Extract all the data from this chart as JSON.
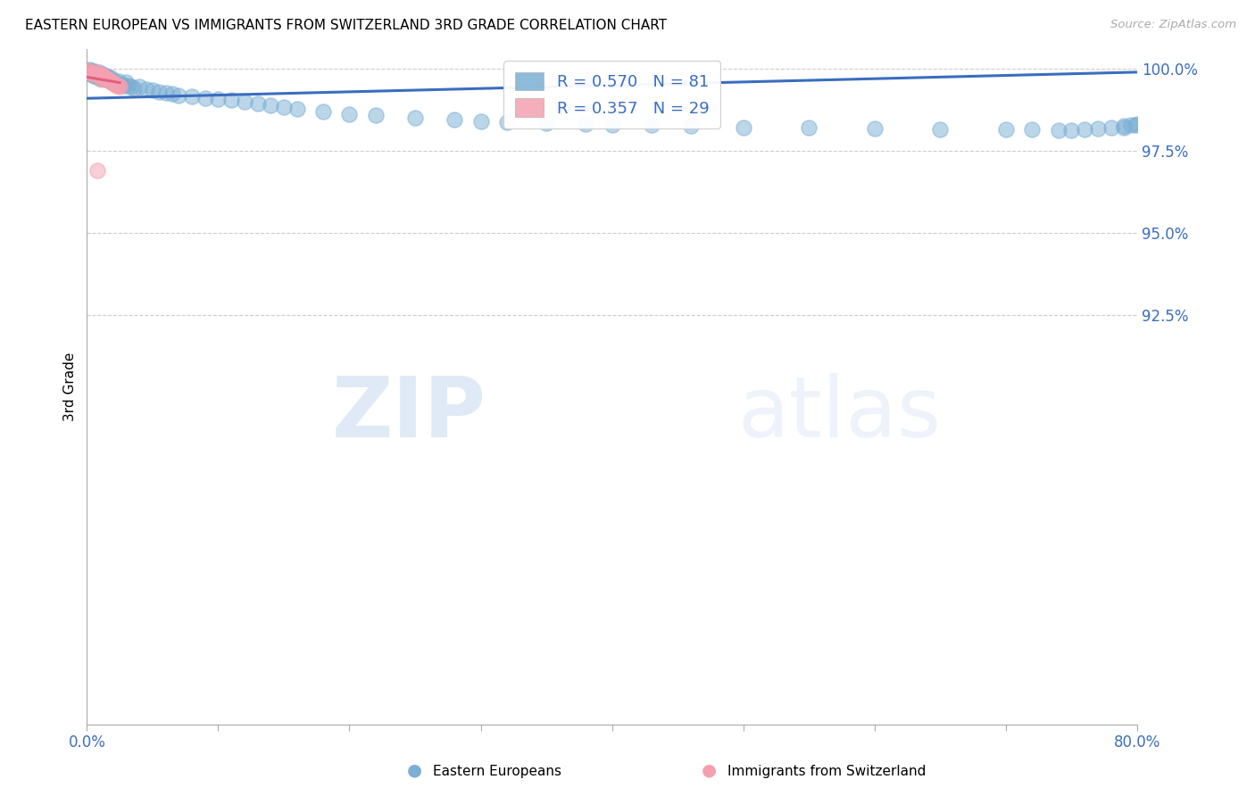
{
  "title": "EASTERN EUROPEAN VS IMMIGRANTS FROM SWITZERLAND 3RD GRADE CORRELATION CHART",
  "source": "Source: ZipAtlas.com",
  "ylabel": "3rd Grade",
  "ylabel_right_ticks": [
    "100.0%",
    "97.5%",
    "95.0%",
    "92.5%"
  ],
  "ylabel_right_vals": [
    1.0,
    0.975,
    0.95,
    0.925
  ],
  "watermark_zip": "ZIP",
  "watermark_atlas": "atlas",
  "legend_label_blue": "Eastern Europeans",
  "legend_label_pink": "Immigrants from Switzerland",
  "blue_color": "#7BAFD4",
  "pink_color": "#F4A0B0",
  "trendline_blue": "#3A6DBF",
  "trendline_pink": "#E06080",
  "xlim": [
    0.0,
    0.8
  ],
  "ylim": [
    0.8,
    1.006
  ],
  "blue_scatter_x": [
    0.001,
    0.002,
    0.002,
    0.003,
    0.003,
    0.004,
    0.004,
    0.005,
    0.005,
    0.006,
    0.006,
    0.007,
    0.007,
    0.008,
    0.008,
    0.009,
    0.009,
    0.01,
    0.01,
    0.011,
    0.012,
    0.013,
    0.014,
    0.015,
    0.016,
    0.017,
    0.018,
    0.019,
    0.02,
    0.022,
    0.024,
    0.026,
    0.028,
    0.03,
    0.032,
    0.034,
    0.036,
    0.04,
    0.045,
    0.05,
    0.055,
    0.06,
    0.065,
    0.07,
    0.08,
    0.09,
    0.1,
    0.11,
    0.12,
    0.13,
    0.14,
    0.15,
    0.16,
    0.18,
    0.2,
    0.22,
    0.25,
    0.28,
    0.3,
    0.32,
    0.35,
    0.38,
    0.4,
    0.43,
    0.46,
    0.5,
    0.55,
    0.6,
    0.65,
    0.7,
    0.72,
    0.74,
    0.75,
    0.76,
    0.77,
    0.78,
    0.79,
    0.79,
    0.795,
    0.799,
    0.8
  ],
  "blue_scatter_y": [
    0.9995,
    0.999,
    0.9998,
    0.9985,
    0.9992,
    0.9988,
    0.9995,
    0.998,
    0.999,
    0.9985,
    0.9992,
    0.9978,
    0.9988,
    0.9975,
    0.9985,
    0.9982,
    0.999,
    0.997,
    0.998,
    0.9975,
    0.9985,
    0.9972,
    0.9978,
    0.9968,
    0.9975,
    0.9965,
    0.9972,
    0.996,
    0.9965,
    0.9958,
    0.9962,
    0.9955,
    0.995,
    0.996,
    0.9948,
    0.9945,
    0.994,
    0.9945,
    0.9938,
    0.9935,
    0.993,
    0.9928,
    0.9925,
    0.992,
    0.9915,
    0.991,
    0.9908,
    0.9905,
    0.99,
    0.9895,
    0.9888,
    0.9882,
    0.9878,
    0.987,
    0.9862,
    0.9858,
    0.985,
    0.9845,
    0.984,
    0.9838,
    0.9835,
    0.9832,
    0.983,
    0.9828,
    0.9825,
    0.9822,
    0.982,
    0.9818,
    0.9816,
    0.9815,
    0.9814,
    0.9813,
    0.9812,
    0.9815,
    0.9818,
    0.982,
    0.9822,
    0.9825,
    0.9828,
    0.983,
    0.9832
  ],
  "pink_scatter_x": [
    0.001,
    0.002,
    0.003,
    0.004,
    0.005,
    0.006,
    0.007,
    0.008,
    0.009,
    0.01,
    0.011,
    0.012,
    0.013,
    0.014,
    0.015,
    0.016,
    0.017,
    0.018,
    0.019,
    0.02,
    0.021,
    0.022,
    0.023,
    0.024,
    0.025,
    0.008,
    0.01,
    0.012,
    0.011
  ],
  "pink_scatter_y": [
    0.9995,
    0.9992,
    0.999,
    0.9988,
    0.9985,
    0.9988,
    0.999,
    0.9985,
    0.9988,
    0.9982,
    0.998,
    0.9978,
    0.9975,
    0.9972,
    0.997,
    0.9968,
    0.9965,
    0.9962,
    0.996,
    0.9958,
    0.9955,
    0.9952,
    0.995,
    0.9948,
    0.9945,
    0.969,
    0.9975,
    0.998,
    0.9968
  ],
  "blue_trend_x": [
    0.0,
    0.8
  ],
  "blue_trend_y": [
    0.991,
    0.999
  ],
  "pink_trend_x": [
    0.0,
    0.025
  ],
  "pink_trend_y": [
    0.9975,
    0.9958
  ]
}
